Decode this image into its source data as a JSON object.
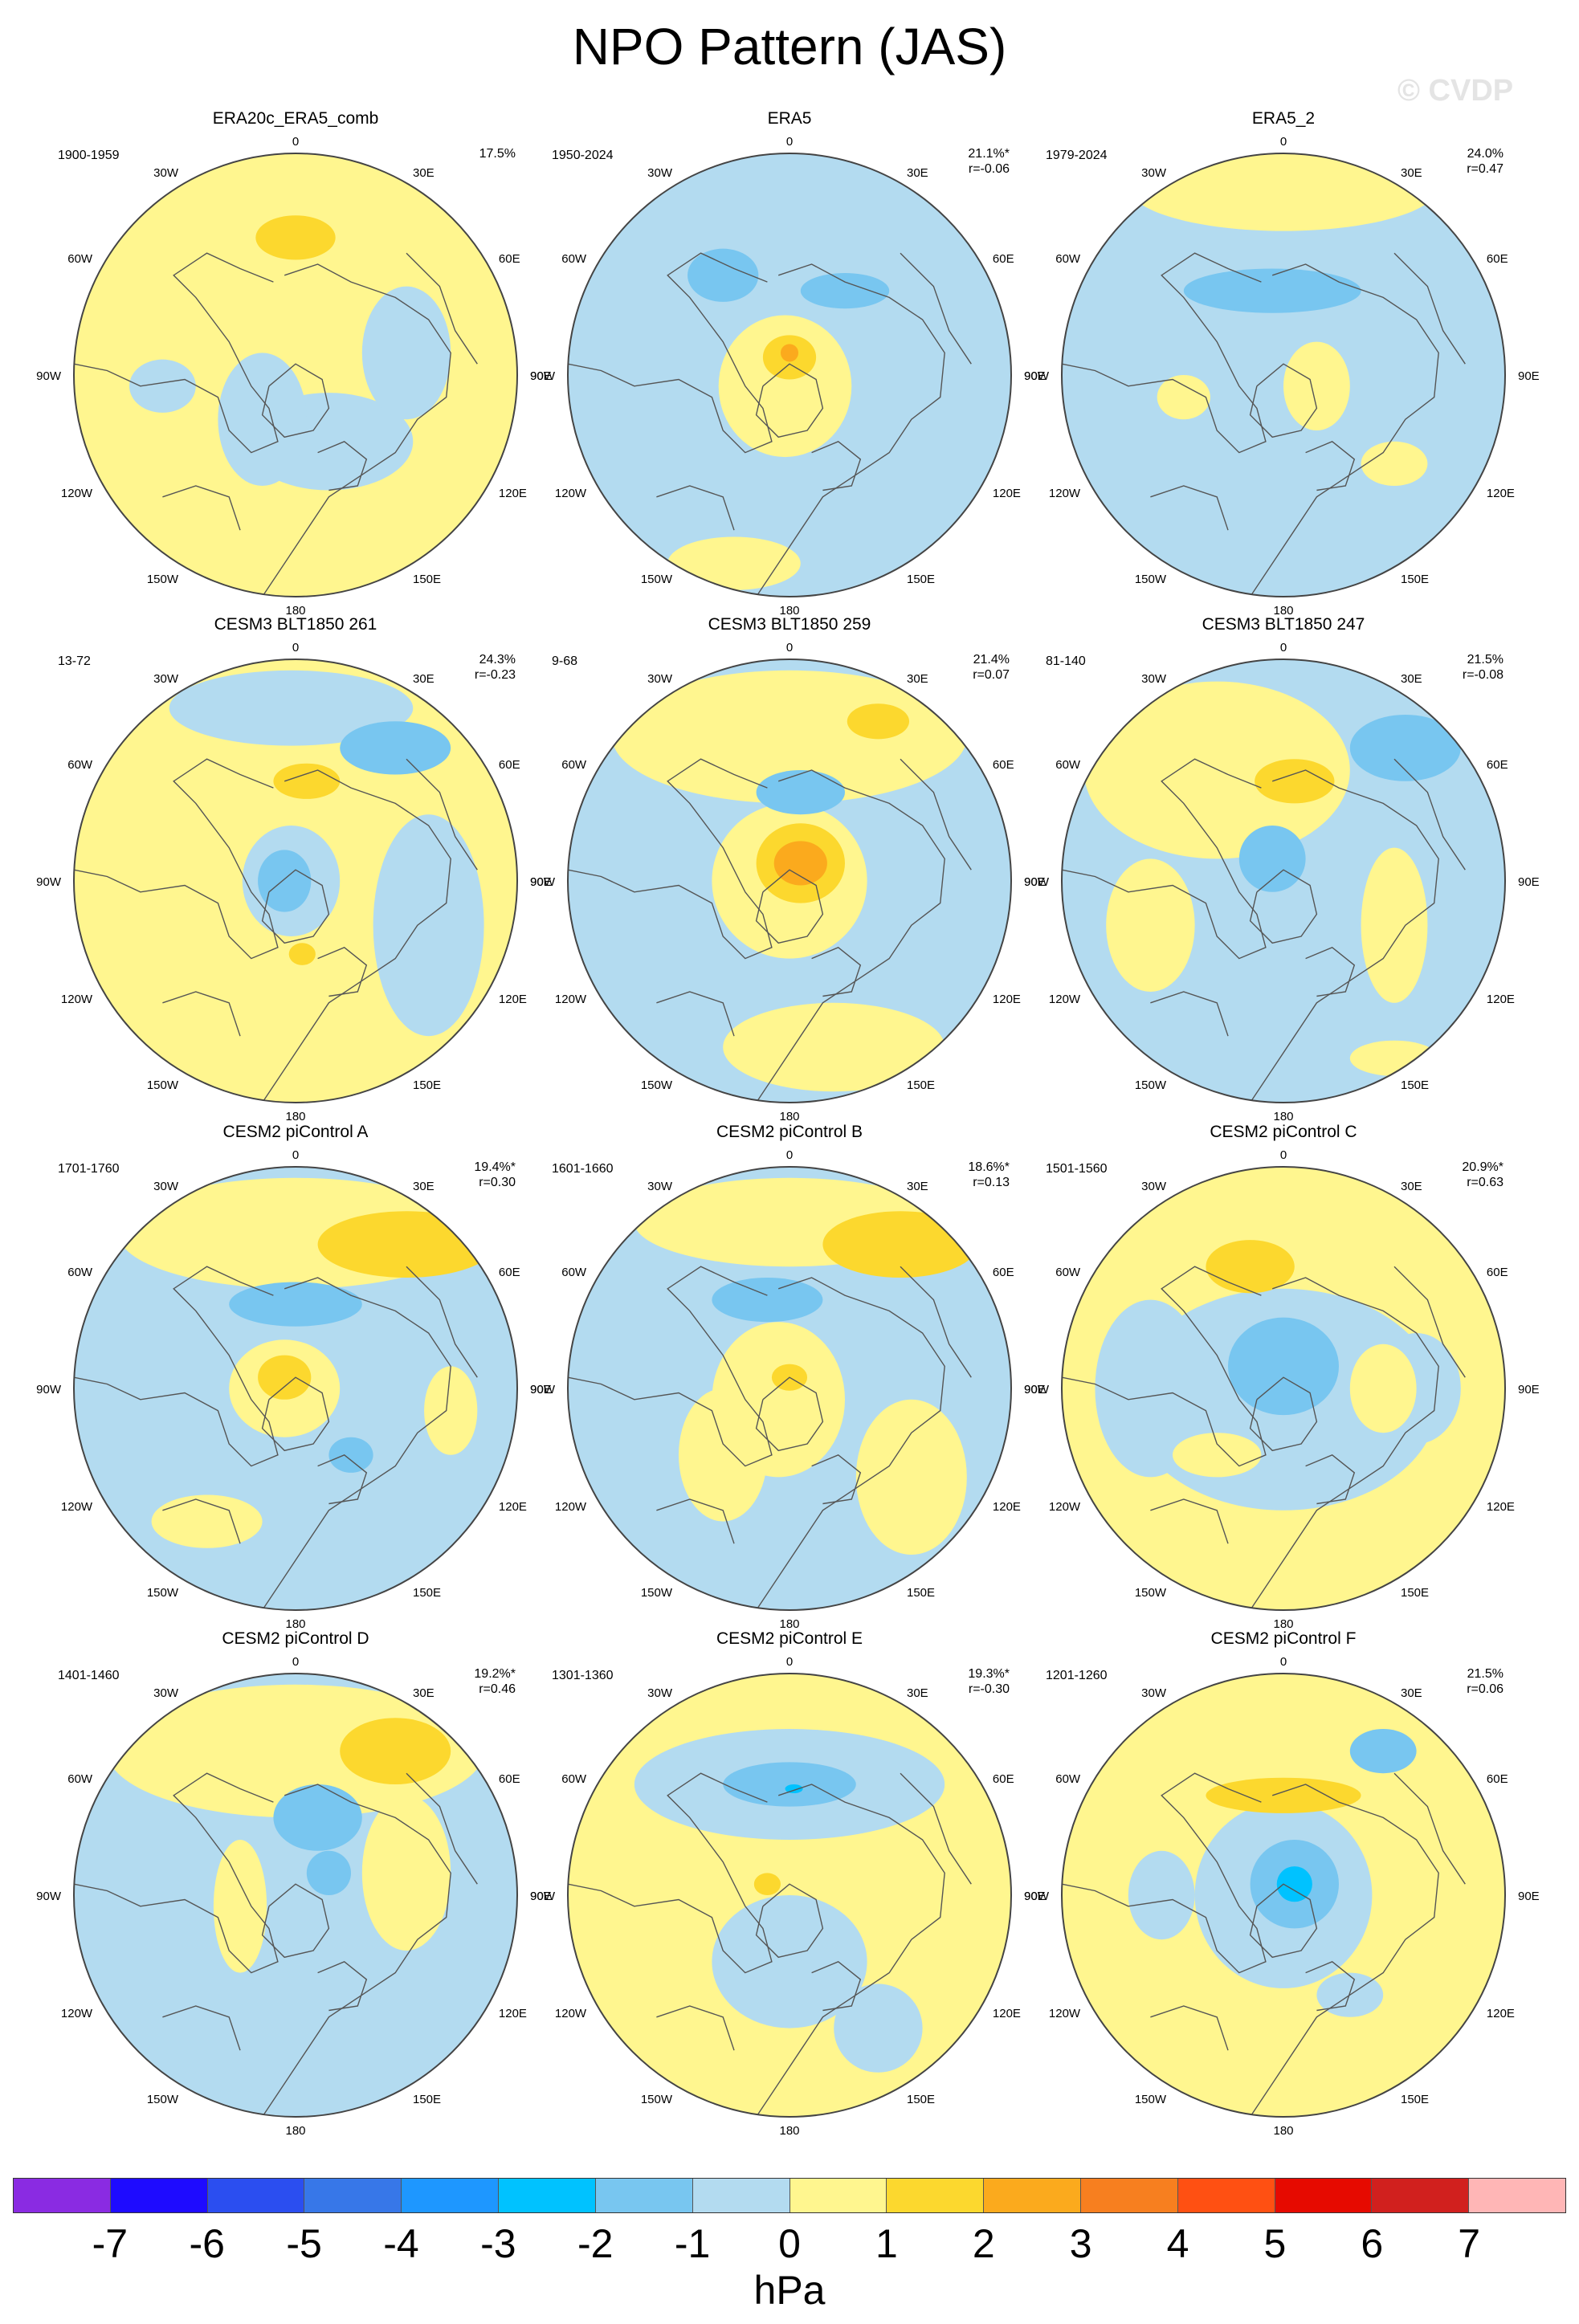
{
  "title": "NPO Pattern (JAS)",
  "watermark": "© CVDP",
  "colors": {
    "land_outline": "#555555",
    "map_border": "#444444",
    "positive_1": "#fff68f",
    "positive_2": "#fcd82e",
    "positive_3": "#fbaa1d",
    "positive_4": "#f77f1f",
    "negative_1": "#b3dbf0",
    "negative_2": "#78c6f0",
    "negative_3": "#00c2ff"
  },
  "longitude_labels": [
    "180",
    "150E",
    "120E",
    "90E",
    "60E",
    "30E",
    "0",
    "30W",
    "60W",
    "90W",
    "120W",
    "150W"
  ],
  "panels": [
    {
      "title": "ERA20c_ERA5_comb",
      "years": "1900-1959",
      "pct": "17.5%",
      "r": "",
      "base": "pos",
      "blobs": [
        [
          "neg",
          0.15,
          0.3,
          0.38,
          0.22
        ],
        [
          "neg",
          -0.15,
          0.2,
          0.2,
          0.3
        ],
        [
          "neg",
          0.5,
          -0.1,
          0.2,
          0.3
        ],
        [
          "neg",
          -0.6,
          0.05,
          0.15,
          0.12
        ],
        [
          "pos2",
          0,
          -0.62,
          0.18,
          0.1
        ]
      ]
    },
    {
      "title": "ERA5",
      "years": "1950-2024",
      "pct": "21.1%*",
      "r": "r=-0.06",
      "base": "neg",
      "blobs": [
        [
          "pos",
          -0.02,
          0.05,
          0.3,
          0.32
        ],
        [
          "pos",
          -0.25,
          0.85,
          0.3,
          0.12
        ],
        [
          "pos2",
          0,
          -0.08,
          0.12,
          0.1
        ],
        [
          "pos3",
          0,
          -0.1,
          0.04,
          0.04
        ],
        [
          "neg2",
          -0.3,
          -0.45,
          0.16,
          0.12
        ],
        [
          "neg2",
          0.25,
          -0.38,
          0.2,
          0.08
        ]
      ]
    },
    {
      "title": "ERA5_2",
      "years": "1979-2024",
      "pct": "24.0%",
      "r": "r=0.47",
      "base": "neg",
      "blobs": [
        [
          "pos",
          0,
          -0.85,
          0.7,
          0.2
        ],
        [
          "pos",
          0.15,
          0.05,
          0.15,
          0.2
        ],
        [
          "pos",
          -0.45,
          0.1,
          0.12,
          0.1
        ],
        [
          "pos",
          0.5,
          0.4,
          0.15,
          0.1
        ],
        [
          "neg2",
          -0.05,
          -0.38,
          0.4,
          0.1
        ]
      ]
    },
    {
      "title": "CESM3 BLT1850 261",
      "years": "13-72",
      "pct": "24.3%",
      "r": "r=-0.23",
      "base": "pos",
      "blobs": [
        [
          "neg",
          -0.02,
          -0.78,
          0.55,
          0.17
        ],
        [
          "neg",
          0.6,
          0.2,
          0.25,
          0.5
        ],
        [
          "neg",
          -0.02,
          0.0,
          0.22,
          0.25
        ],
        [
          "neg2",
          -0.05,
          0.0,
          0.12,
          0.14
        ],
        [
          "neg2",
          0.45,
          -0.6,
          0.25,
          0.12
        ],
        [
          "pos2",
          0.05,
          -0.45,
          0.15,
          0.08
        ],
        [
          "pos2",
          0.03,
          0.33,
          0.06,
          0.05
        ]
      ]
    },
    {
      "title": "CESM3 BLT1850 259",
      "years": "9-68",
      "pct": "21.4%",
      "r": "r=0.07",
      "base": "neg",
      "blobs": [
        [
          "pos",
          0,
          -0.65,
          0.8,
          0.3
        ],
        [
          "pos",
          0,
          0.0,
          0.35,
          0.35
        ],
        [
          "pos",
          0.2,
          0.75,
          0.5,
          0.2
        ],
        [
          "pos2",
          0.05,
          -0.08,
          0.2,
          0.18
        ],
        [
          "pos3",
          0.05,
          -0.08,
          0.12,
          0.1
        ],
        [
          "pos2",
          0.4,
          -0.72,
          0.14,
          0.08
        ],
        [
          "neg2",
          0.05,
          -0.4,
          0.2,
          0.1
        ]
      ]
    },
    {
      "title": "CESM3 BLT1850 247",
      "years": "81-140",
      "pct": "21.5%",
      "r": "r=-0.08",
      "base": "neg",
      "blobs": [
        [
          "pos",
          -0.3,
          -0.5,
          0.6,
          0.4
        ],
        [
          "pos",
          0.5,
          0.2,
          0.15,
          0.35
        ],
        [
          "pos",
          -0.6,
          0.2,
          0.2,
          0.3
        ],
        [
          "pos",
          0.5,
          0.8,
          0.2,
          0.08
        ],
        [
          "pos2",
          0.05,
          -0.45,
          0.18,
          0.1
        ],
        [
          "neg2",
          0.55,
          -0.6,
          0.25,
          0.15
        ],
        [
          "neg2",
          -0.05,
          -0.1,
          0.15,
          0.15
        ]
      ]
    },
    {
      "title": "CESM2 piControl A",
      "years": "1701-1760",
      "pct": "19.4%*",
      "r": "r=0.30",
      "base": "neg",
      "blobs": [
        [
          "pos",
          0,
          -0.7,
          0.8,
          0.25
        ],
        [
          "pos",
          -0.05,
          0.0,
          0.25,
          0.22
        ],
        [
          "pos",
          -0.4,
          0.6,
          0.25,
          0.12
        ],
        [
          "pos",
          0.7,
          0.1,
          0.12,
          0.2
        ],
        [
          "pos2",
          0.5,
          -0.65,
          0.4,
          0.15
        ],
        [
          "pos2",
          -0.05,
          -0.05,
          0.12,
          0.1
        ],
        [
          "neg2",
          0.0,
          -0.38,
          0.3,
          0.1
        ],
        [
          "neg2",
          0.25,
          0.3,
          0.1,
          0.08
        ]
      ]
    },
    {
      "title": "CESM2 piControl B",
      "years": "1601-1660",
      "pct": "18.6%*",
      "r": "r=0.13",
      "base": "neg",
      "blobs": [
        [
          "pos",
          0,
          -0.75,
          0.7,
          0.2
        ],
        [
          "pos",
          -0.05,
          0.05,
          0.3,
          0.35
        ],
        [
          "pos",
          0.55,
          0.4,
          0.25,
          0.35
        ],
        [
          "pos",
          -0.3,
          0.3,
          0.2,
          0.3
        ],
        [
          "pos2",
          0.5,
          -0.65,
          0.35,
          0.15
        ],
        [
          "pos2",
          0.0,
          -0.05,
          0.08,
          0.06
        ],
        [
          "neg2",
          -0.1,
          -0.4,
          0.25,
          0.1
        ]
      ]
    },
    {
      "title": "CESM2 piControl C",
      "years": "1501-1560",
      "pct": "20.9%*",
      "r": "r=0.63",
      "base": "pos",
      "blobs": [
        [
          "neg",
          0,
          0.05,
          0.7,
          0.5
        ],
        [
          "neg",
          -0.6,
          0.0,
          0.25,
          0.4
        ],
        [
          "neg",
          0.6,
          0.0,
          0.2,
          0.25
        ],
        [
          "neg2",
          0.0,
          -0.1,
          0.25,
          0.22
        ],
        [
          "pos2",
          -0.15,
          -0.55,
          0.2,
          0.12
        ],
        [
          "pos",
          0.45,
          0.0,
          0.15,
          0.2
        ],
        [
          "pos",
          -0.3,
          0.3,
          0.2,
          0.1
        ]
      ]
    },
    {
      "title": "CESM2 piControl D",
      "years": "1401-1460",
      "pct": "19.2%*",
      "r": "r=0.46",
      "base": "neg",
      "blobs": [
        [
          "pos",
          0,
          -0.65,
          0.85,
          0.3
        ],
        [
          "pos",
          0.5,
          -0.1,
          0.2,
          0.35
        ],
        [
          "pos",
          -0.25,
          0.05,
          0.12,
          0.3
        ],
        [
          "pos2",
          0.45,
          -0.65,
          0.25,
          0.15
        ],
        [
          "neg2",
          0.1,
          -0.35,
          0.2,
          0.15
        ],
        [
          "neg2",
          0.15,
          -0.1,
          0.1,
          0.1
        ]
      ]
    },
    {
      "title": "CESM2 piControl E",
      "years": "1301-1360",
      "pct": "19.3%*",
      "r": "r=-0.30",
      "base": "pos",
      "blobs": [
        [
          "neg",
          0.0,
          -0.5,
          0.7,
          0.25
        ],
        [
          "neg",
          0.0,
          0.3,
          0.35,
          0.3
        ],
        [
          "neg",
          0.4,
          0.6,
          0.2,
          0.2
        ],
        [
          "neg2",
          0.0,
          -0.5,
          0.3,
          0.1
        ],
        [
          "neg3",
          0.02,
          -0.48,
          0.04,
          0.02
        ],
        [
          "pos2",
          -0.1,
          -0.05,
          0.06,
          0.05
        ]
      ]
    },
    {
      "title": "CESM2 piControl F",
      "years": "1201-1260",
      "pct": "21.5%",
      "r": "r=0.06",
      "base": "pos",
      "blobs": [
        [
          "neg",
          0.0,
          0.0,
          0.4,
          0.42
        ],
        [
          "neg",
          -0.55,
          0.0,
          0.15,
          0.2
        ],
        [
          "neg",
          0.3,
          0.45,
          0.15,
          0.1
        ],
        [
          "neg2",
          0.05,
          -0.05,
          0.2,
          0.2
        ],
        [
          "neg3",
          0.05,
          -0.05,
          0.08,
          0.08
        ],
        [
          "neg2",
          0.45,
          -0.65,
          0.15,
          0.1
        ],
        [
          "pos2",
          0.0,
          -0.45,
          0.35,
          0.08
        ]
      ]
    }
  ],
  "colorbar": {
    "units": "hPa",
    "labels": [
      "-7",
      "-6",
      "-5",
      "-4",
      "-3",
      "-2",
      "-1",
      "0",
      "1",
      "2",
      "3",
      "4",
      "5",
      "6",
      "7"
    ],
    "colors": [
      "#8a2be2",
      "#1e0bff",
      "#2b4ef0",
      "#3777e8",
      "#1e97ff",
      "#00c2ff",
      "#78c6f0",
      "#b3dbf0",
      "#fff68f",
      "#fcd82e",
      "#fbaa1d",
      "#f77f1f",
      "#ff5012",
      "#e60a00",
      "#d1201e",
      "#ffb6b6"
    ]
  }
}
